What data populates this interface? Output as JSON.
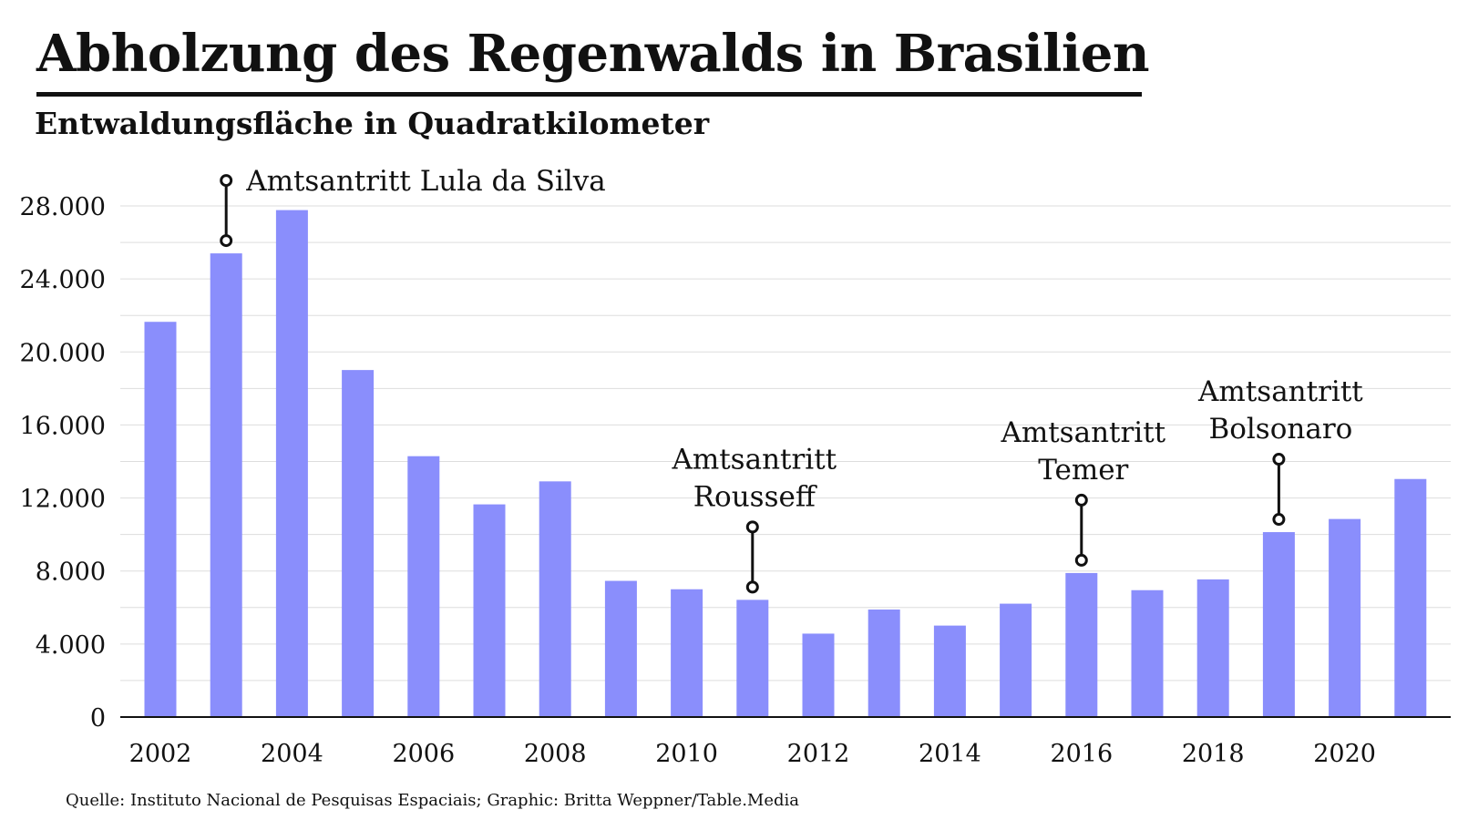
{
  "header": {
    "title": "Abholzung des Regenwalds in Brasilien",
    "subtitle": "Entwaldungsfläche in Quadratkilometer"
  },
  "footer": {
    "source": "Quelle: Instituto Nacional de Pesquisas Espaciais; Graphic: Britta Weppner/Table.Media"
  },
  "colors": {
    "bar": "#8a8efc",
    "grid": "#dddddd",
    "axis": "#111111",
    "text": "#111111"
  },
  "chart_data": {
    "type": "bar",
    "title": "Abholzung des Regenwalds in Brasilien",
    "subtitle": "Entwaldungsfläche in Quadratkilometer",
    "xlabel": "",
    "ylabel": "",
    "categories": [
      "2002",
      "2003",
      "2004",
      "2005",
      "2006",
      "2007",
      "2008",
      "2009",
      "2010",
      "2011",
      "2012",
      "2013",
      "2014",
      "2015",
      "2016",
      "2017",
      "2018",
      "2019",
      "2020",
      "2021"
    ],
    "values": [
      21650,
      25400,
      27770,
      19010,
      14290,
      11650,
      12910,
      7460,
      7000,
      6420,
      4570,
      5890,
      5010,
      6210,
      7890,
      6950,
      7540,
      10130,
      10850,
      13040
    ],
    "ylim": [
      0,
      28000
    ],
    "yticks": [
      0,
      4000,
      8000,
      12000,
      16000,
      20000,
      24000,
      28000
    ],
    "ytick_labels": [
      "0",
      "4.000",
      "8.000",
      "12.000",
      "16.000",
      "20.000",
      "24.000",
      "28.000"
    ],
    "minor_grid_step": 2000,
    "xtick_labels": [
      "2002",
      "2004",
      "2006",
      "2008",
      "2010",
      "2012",
      "2014",
      "2016",
      "2018",
      "2020"
    ],
    "grid": true,
    "legend": "none",
    "annotations": [
      {
        "year": "2003",
        "lines": [
          "Amtsantritt Lula da Silva"
        ],
        "position": "right"
      },
      {
        "year": "2011",
        "lines": [
          "Amtsantritt",
          "Rousseff"
        ],
        "position": "above"
      },
      {
        "year": "2016",
        "lines": [
          "Amtsantritt",
          "Temer"
        ],
        "position": "above"
      },
      {
        "year": "2019",
        "lines": [
          "Amtsantritt",
          "Bolsonaro"
        ],
        "position": "above"
      }
    ]
  }
}
